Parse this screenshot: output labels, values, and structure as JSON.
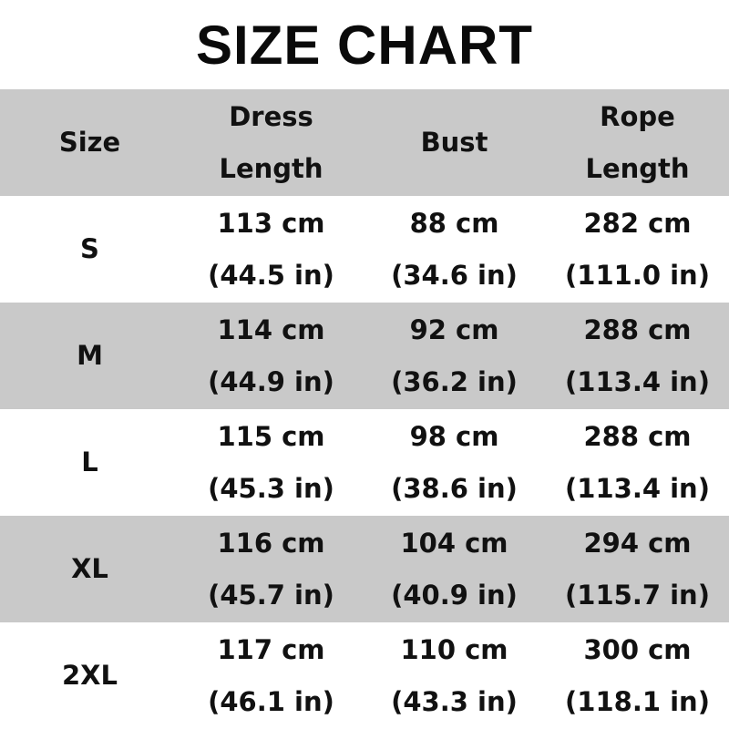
{
  "title": "SIZE CHART",
  "headers": [
    {
      "line1": "Size",
      "line2": ""
    },
    {
      "line1": "Dress",
      "line2": "Length"
    },
    {
      "line1": "Bust",
      "line2": ""
    },
    {
      "line1": "Rope",
      "line2": "Length"
    }
  ],
  "rows": [
    {
      "size": "S",
      "dress_cm": "113 cm",
      "dress_in": "(44.5 in)",
      "bust_cm": "88 cm",
      "bust_in": "(34.6 in)",
      "rope_cm": "282 cm",
      "rope_in": "(111.0 in)"
    },
    {
      "size": "M",
      "dress_cm": "114 cm",
      "dress_in": "(44.9 in)",
      "bust_cm": "92 cm",
      "bust_in": "(36.2 in)",
      "rope_cm": "288 cm",
      "rope_in": "(113.4 in)"
    },
    {
      "size": "L",
      "dress_cm": "115 cm",
      "dress_in": "(45.3 in)",
      "bust_cm": "98 cm",
      "bust_in": "(38.6 in)",
      "rope_cm": "288 cm",
      "rope_in": "(113.4 in)"
    },
    {
      "size": "XL",
      "dress_cm": "116 cm",
      "dress_in": "(45.7 in)",
      "bust_cm": "104 cm",
      "bust_in": "(40.9 in)",
      "rope_cm": "294 cm",
      "rope_in": "(115.7 in)"
    },
    {
      "size": "2XL",
      "dress_cm": "117 cm",
      "dress_in": "(46.1 in)",
      "bust_cm": "110 cm",
      "bust_in": "(43.3 in)",
      "rope_cm": "300 cm",
      "rope_in": "(118.1 in)"
    }
  ],
  "colors": {
    "header_row": "#c9c9c9",
    "alt_row": "#c9c9c9",
    "text": "#111111"
  }
}
